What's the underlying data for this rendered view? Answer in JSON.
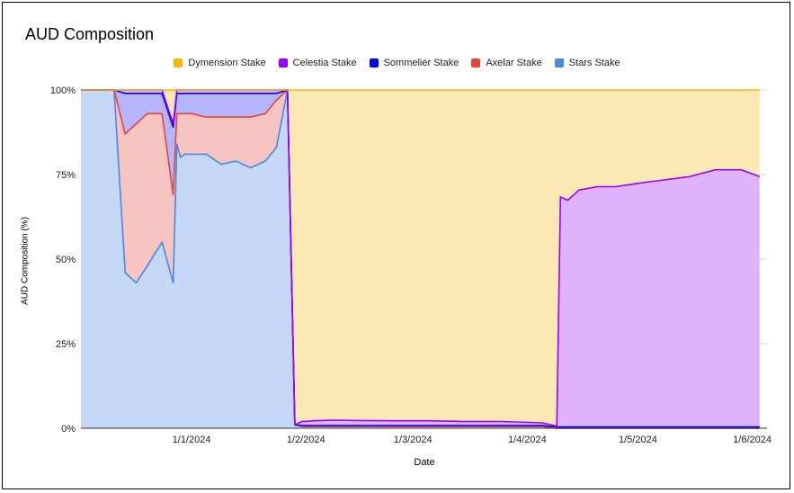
{
  "chart_data": {
    "type": "area",
    "stacked": true,
    "title": "AUD Composition",
    "xlabel": "Date",
    "ylabel": "AUD Composition (%)",
    "x_ticks": [
      "1/1/2024",
      "1/2/2024",
      "1/3/2024",
      "1/4/2024",
      "1/5/2024",
      "1/6/2024"
    ],
    "y_ticks": [
      "0%",
      "25%",
      "50%",
      "75%",
      "100%"
    ],
    "ylim": [
      0,
      100
    ],
    "legend_position": "top",
    "x": [
      "2023-12-02",
      "2023-12-11",
      "2023-12-14",
      "2023-12-17",
      "2023-12-20",
      "2023-12-24",
      "2023-12-27",
      "2023-12-28",
      "2023-12-29",
      "2023-12-30",
      "2024-01-01",
      "2024-01-05",
      "2024-01-09",
      "2024-01-13",
      "2024-01-17",
      "2024-01-21",
      "2024-01-24",
      "2024-01-27",
      "2024-01-29",
      "2024-01-31",
      "2024-02-02",
      "2024-02-03",
      "2024-02-09",
      "2024-02-15",
      "2024-02-25",
      "2024-03-05",
      "2024-03-15",
      "2024-03-25",
      "2024-04-05",
      "2024-04-09",
      "2024-04-10",
      "2024-04-12",
      "2024-04-15",
      "2024-04-20",
      "2024-04-25",
      "2024-05-01",
      "2024-05-08",
      "2024-05-15",
      "2024-05-22",
      "2024-05-29",
      "2024-06-03"
    ],
    "series": [
      {
        "name": "Stars Stake",
        "color": "#4a86e8",
        "fill": "#c5d8f7",
        "values": [
          100,
          100,
          46,
          43,
          48,
          55,
          43,
          84,
          80,
          81,
          81,
          81,
          78,
          79,
          77,
          79,
          83,
          100,
          1,
          0.5,
          0.5,
          0.5,
          0.5,
          0.5,
          0.5,
          0.5,
          0.5,
          0.5,
          0.5,
          0,
          0,
          0,
          0,
          0,
          0,
          0,
          0,
          0,
          0,
          0,
          0
        ]
      },
      {
        "name": "Axelar Stake",
        "color": "#ea4335",
        "fill": "#f6c5c1",
        "values": [
          0,
          0,
          41,
          47,
          45,
          38,
          26,
          9,
          13,
          12,
          12,
          11,
          14,
          13,
          15,
          14,
          14,
          0,
          0,
          0,
          0,
          0,
          0,
          0,
          0,
          0,
          0,
          0,
          0,
          0,
          0,
          0,
          0,
          0,
          0,
          0,
          0,
          0,
          0,
          0,
          0
        ]
      },
      {
        "name": "Sommelier Stake",
        "color": "#0000ff",
        "fill": "#b4b4ff",
        "values": [
          0,
          0,
          12,
          9,
          6,
          6,
          20,
          6,
          6,
          6,
          6,
          7,
          7,
          7,
          7,
          6,
          2,
          0,
          0,
          0.3,
          0.3,
          0.3,
          0.3,
          0.3,
          0.3,
          0.3,
          0.3,
          0.3,
          0.3,
          0.4,
          0.4,
          0.4,
          0.4,
          0.4,
          0.4,
          0.4,
          0.4,
          0.4,
          0.4,
          0.4,
          0.4
        ]
      },
      {
        "name": "Celestia Stake",
        "color": "#9900ff",
        "fill": "#e0b3ff",
        "values": [
          0,
          0,
          1,
          1,
          1,
          1,
          1,
          1,
          1,
          1,
          1,
          1,
          1,
          1,
          1,
          1,
          1,
          0,
          0,
          1.2,
          1.3,
          1.4,
          1.6,
          1.5,
          1.4,
          1.4,
          1.2,
          1.2,
          0.8,
          0.2,
          68,
          67,
          70,
          71,
          71,
          72,
          73,
          74,
          76,
          76,
          74
        ]
      },
      {
        "name": "Dymension Stake",
        "color": "#f9b700",
        "fill": "#fce8b2",
        "values": [
          0,
          0,
          0,
          0,
          0,
          0,
          10,
          0,
          0,
          0,
          0,
          0,
          0,
          0,
          0,
          0,
          0,
          0,
          99,
          98,
          97.9,
          97.8,
          97.6,
          97.7,
          97.8,
          97.8,
          98,
          98,
          98.4,
          99.4,
          31.6,
          32.6,
          29.6,
          28.6,
          28.6,
          27.6,
          26.6,
          25.6,
          23.6,
          23.6,
          25.6
        ]
      }
    ]
  }
}
